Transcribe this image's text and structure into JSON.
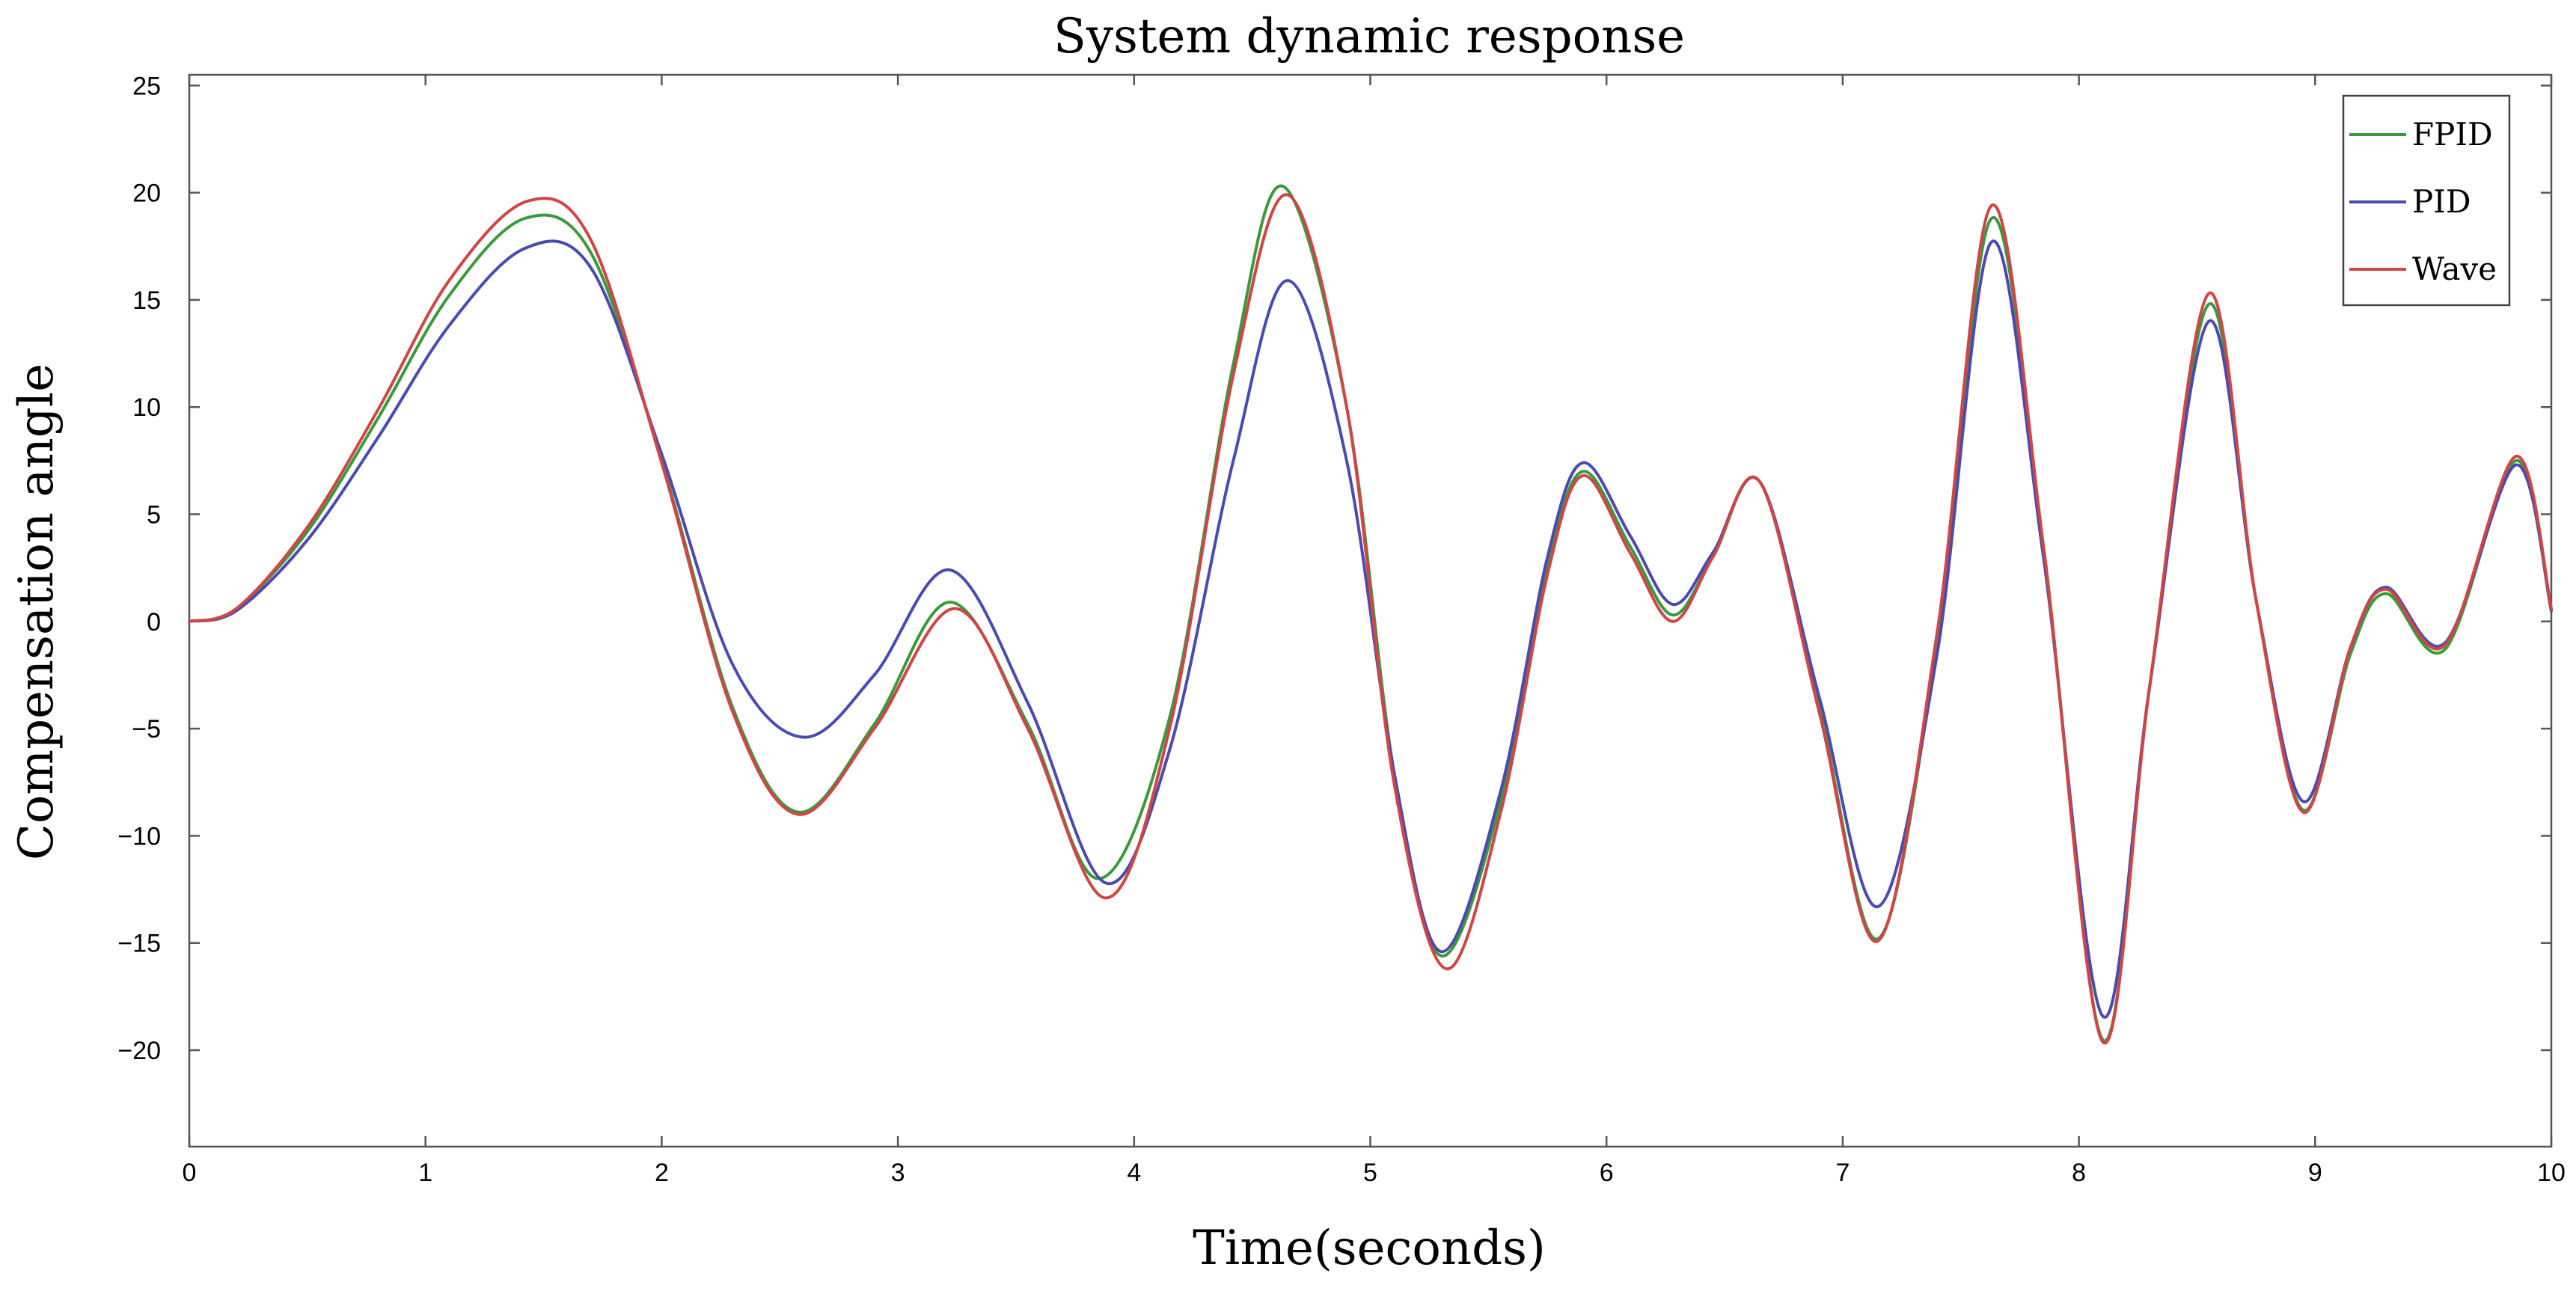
{
  "chart_data": {
    "type": "line",
    "title": "System dynamic response",
    "xlabel": "Time(seconds)",
    "ylabel": "Compensation angle",
    "xlim": [
      0,
      10
    ],
    "ylim": [
      -24.5,
      25.5
    ],
    "xticks": [
      0,
      1,
      2,
      3,
      4,
      5,
      6,
      7,
      8,
      9,
      10
    ],
    "yticks": [
      25,
      20,
      15,
      10,
      5,
      0,
      -5,
      -10,
      -15,
      -20
    ],
    "grid": false,
    "legend_position": "top-right",
    "series": [
      {
        "name": "FPID",
        "color": "#3a9a3a",
        "points": [
          [
            0,
            0
          ],
          [
            0.2,
            0.6
          ],
          [
            0.5,
            4.2
          ],
          [
            0.8,
            9.5
          ],
          [
            1.1,
            15.2
          ],
          [
            1.42,
            18.8
          ],
          [
            1.7,
            17.2
          ],
          [
            2.0,
            7.5
          ],
          [
            2.3,
            -4.0
          ],
          [
            2.58,
            -8.9
          ],
          [
            2.9,
            -4.8
          ],
          [
            3.22,
            0.9
          ],
          [
            3.55,
            -4.8
          ],
          [
            3.85,
            -12.0
          ],
          [
            4.15,
            -4.5
          ],
          [
            4.42,
            12.0
          ],
          [
            4.63,
            20.3
          ],
          [
            4.9,
            10.0
          ],
          [
            5.1,
            -7.0
          ],
          [
            5.3,
            -15.6
          ],
          [
            5.55,
            -8.5
          ],
          [
            5.75,
            2.5
          ],
          [
            5.9,
            7.0
          ],
          [
            6.1,
            3.5
          ],
          [
            6.28,
            0.3
          ],
          [
            6.45,
            3.0
          ],
          [
            6.65,
            6.5
          ],
          [
            6.9,
            -4.0
          ],
          [
            7.15,
            -14.8
          ],
          [
            7.4,
            -1.0
          ],
          [
            7.63,
            18.8
          ],
          [
            7.85,
            3.5
          ],
          [
            8.1,
            -19.5
          ],
          [
            8.3,
            -3.0
          ],
          [
            8.55,
            14.8
          ],
          [
            8.75,
            1.0
          ],
          [
            8.95,
            -8.8
          ],
          [
            9.15,
            -1.5
          ],
          [
            9.3,
            1.3
          ],
          [
            9.55,
            -1.3
          ],
          [
            9.85,
            7.5
          ],
          [
            10.0,
            0.5
          ]
        ]
      },
      {
        "name": "PID",
        "color": "#4a4ab0",
        "points": [
          [
            0,
            0
          ],
          [
            0.2,
            0.5
          ],
          [
            0.5,
            3.8
          ],
          [
            0.8,
            8.6
          ],
          [
            1.1,
            13.8
          ],
          [
            1.42,
            17.4
          ],
          [
            1.7,
            16.5
          ],
          [
            2.0,
            7.8
          ],
          [
            2.3,
            -2.0
          ],
          [
            2.6,
            -5.4
          ],
          [
            2.9,
            -2.5
          ],
          [
            3.22,
            2.4
          ],
          [
            3.55,
            -3.8
          ],
          [
            3.88,
            -12.2
          ],
          [
            4.15,
            -6.0
          ],
          [
            4.42,
            7.5
          ],
          [
            4.65,
            15.9
          ],
          [
            4.9,
            7.5
          ],
          [
            5.1,
            -7.0
          ],
          [
            5.3,
            -15.4
          ],
          [
            5.55,
            -8.0
          ],
          [
            5.75,
            3.0
          ],
          [
            5.9,
            7.4
          ],
          [
            6.1,
            4.0
          ],
          [
            6.28,
            0.8
          ],
          [
            6.45,
            3.2
          ],
          [
            6.65,
            6.5
          ],
          [
            6.9,
            -3.5
          ],
          [
            7.15,
            -13.3
          ],
          [
            7.4,
            -1.5
          ],
          [
            7.63,
            17.7
          ],
          [
            7.85,
            3.0
          ],
          [
            8.1,
            -18.4
          ],
          [
            8.3,
            -3.0
          ],
          [
            8.55,
            14.0
          ],
          [
            8.75,
            1.0
          ],
          [
            8.95,
            -8.4
          ],
          [
            9.15,
            -1.2
          ],
          [
            9.3,
            1.6
          ],
          [
            9.55,
            -1.0
          ],
          [
            9.85,
            7.3
          ],
          [
            10.0,
            0.5
          ]
        ]
      },
      {
        "name": "Wave",
        "color": "#d04545",
        "points": [
          [
            0,
            0
          ],
          [
            0.2,
            0.6
          ],
          [
            0.5,
            4.4
          ],
          [
            0.8,
            9.9
          ],
          [
            1.1,
            15.9
          ],
          [
            1.43,
            19.6
          ],
          [
            1.7,
            17.8
          ],
          [
            2.0,
            7.4
          ],
          [
            2.3,
            -4.2
          ],
          [
            2.58,
            -9.0
          ],
          [
            2.9,
            -5.0
          ],
          [
            3.24,
            0.6
          ],
          [
            3.55,
            -5.0
          ],
          [
            3.88,
            -12.9
          ],
          [
            4.15,
            -5.0
          ],
          [
            4.42,
            11.5
          ],
          [
            4.65,
            19.9
          ],
          [
            4.9,
            10.0
          ],
          [
            5.1,
            -7.5
          ],
          [
            5.32,
            -16.2
          ],
          [
            5.55,
            -9.0
          ],
          [
            5.75,
            2.2
          ],
          [
            5.9,
            6.8
          ],
          [
            6.1,
            3.2
          ],
          [
            6.28,
            0.0
          ],
          [
            6.45,
            3.0
          ],
          [
            6.65,
            6.5
          ],
          [
            6.9,
            -4.2
          ],
          [
            7.15,
            -14.9
          ],
          [
            7.4,
            -0.5
          ],
          [
            7.63,
            19.4
          ],
          [
            7.85,
            3.5
          ],
          [
            8.1,
            -19.6
          ],
          [
            8.3,
            -3.0
          ],
          [
            8.55,
            15.3
          ],
          [
            8.75,
            1.0
          ],
          [
            8.95,
            -8.9
          ],
          [
            9.15,
            -1.2
          ],
          [
            9.3,
            1.5
          ],
          [
            9.55,
            -1.1
          ],
          [
            9.85,
            7.7
          ],
          [
            10.0,
            0.6
          ]
        ]
      }
    ]
  }
}
